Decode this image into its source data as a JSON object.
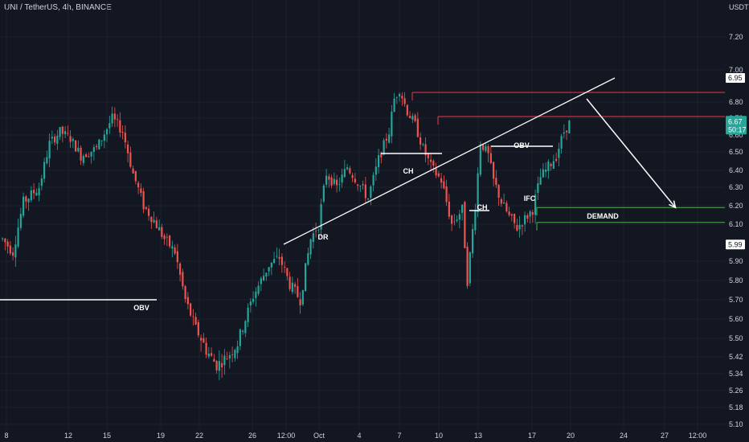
{
  "header": {
    "symbol_title": "UNI / TetherUS, 4h, BINANCE"
  },
  "colors": {
    "background": "#131722",
    "grid": "#1e222d",
    "up": "#26a69a",
    "down": "#ef5350",
    "text": "#d1d4dc",
    "resistance": "#f23645",
    "demand": "#4caf50",
    "white": "#ffffff"
  },
  "chart_data": {
    "type": "candlestick",
    "quote_currency": "USDT",
    "y_ticks": [
      "7.20",
      "7.00",
      "6.80",
      "6.70",
      "6.60",
      "6.50",
      "6.40",
      "6.30",
      "6.20",
      "6.10",
      "5.90",
      "5.80",
      "5.70",
      "5.60",
      "5.50",
      "5.42",
      "5.34",
      "5.26",
      "5.18",
      "5.10"
    ],
    "x_ticks": [
      "8",
      "12",
      "15",
      "19",
      "22",
      "26",
      "12:00",
      "Oct",
      "4",
      "7",
      "10",
      "13",
      "17",
      "20",
      "24",
      "27",
      "12:00"
    ],
    "ylim": [
      5.1,
      7.4
    ],
    "grid": true,
    "price_tags": [
      {
        "label": "6.95",
        "value": 6.95,
        "style": "white"
      },
      {
        "label": "6.67",
        "sub": "50:17",
        "value": 6.67,
        "style": "current"
      },
      {
        "label": "5.99",
        "value": 5.99,
        "style": "white"
      }
    ],
    "levels": [
      {
        "name": "resistance-upper",
        "value": 6.86,
        "color": "#f23645"
      },
      {
        "name": "resistance-lower",
        "value": 6.71,
        "color": "#f23645"
      },
      {
        "name": "demand-upper",
        "value": 6.19,
        "color": "#4caf50"
      },
      {
        "name": "demand-lower",
        "value": 6.11,
        "color": "#4caf50"
      }
    ],
    "annotations": [
      "OBV",
      "DR",
      "CH",
      "OBV",
      "CH",
      "IFC",
      "DEMAND"
    ],
    "swing_path": [
      [
        0,
        6.02
      ],
      [
        4,
        5.95
      ],
      [
        8,
        6.22
      ],
      [
        14,
        6.3
      ],
      [
        18,
        6.55
      ],
      [
        22,
        6.62
      ],
      [
        26,
        6.58
      ],
      [
        30,
        6.48
      ],
      [
        36,
        6.52
      ],
      [
        42,
        6.7
      ],
      [
        46,
        6.62
      ],
      [
        50,
        6.38
      ],
      [
        54,
        6.2
      ],
      [
        58,
        6.12
      ],
      [
        62,
        6.02
      ],
      [
        66,
        5.95
      ],
      [
        70,
        5.7
      ],
      [
        74,
        5.55
      ],
      [
        78,
        5.45
      ],
      [
        82,
        5.38
      ],
      [
        86,
        5.42
      ],
      [
        90,
        5.48
      ],
      [
        96,
        5.72
      ],
      [
        102,
        5.88
      ],
      [
        106,
        5.92
      ],
      [
        110,
        5.78
      ],
      [
        114,
        5.7
      ],
      [
        118,
        6.02
      ],
      [
        121,
        6.1
      ],
      [
        124,
        6.38
      ],
      [
        128,
        6.3
      ],
      [
        132,
        6.42
      ],
      [
        136,
        6.33
      ],
      [
        140,
        6.24
      ],
      [
        144,
        6.46
      ],
      [
        148,
        6.62
      ],
      [
        150,
        6.82
      ],
      [
        152,
        6.88
      ],
      [
        155,
        6.74
      ],
      [
        158,
        6.66
      ],
      [
        161,
        6.52
      ],
      [
        164,
        6.42
      ],
      [
        168,
        6.34
      ],
      [
        172,
        6.1
      ],
      [
        176,
        6.18
      ],
      [
        178,
        5.8
      ],
      [
        181,
        6.2
      ],
      [
        183,
        6.56
      ],
      [
        186,
        6.48
      ],
      [
        188,
        6.34
      ],
      [
        191,
        6.22
      ],
      [
        194,
        6.14
      ],
      [
        197,
        6.08
      ],
      [
        200,
        6.13
      ],
      [
        203,
        6.18
      ],
      [
        206,
        6.36
      ],
      [
        209,
        6.42
      ],
      [
        212,
        6.48
      ],
      [
        215,
        6.62
      ],
      [
        217,
        6.67
      ]
    ],
    "projection": {
      "from": [
        224,
        6.82
      ],
      "to": [
        258,
        6.19
      ]
    }
  }
}
